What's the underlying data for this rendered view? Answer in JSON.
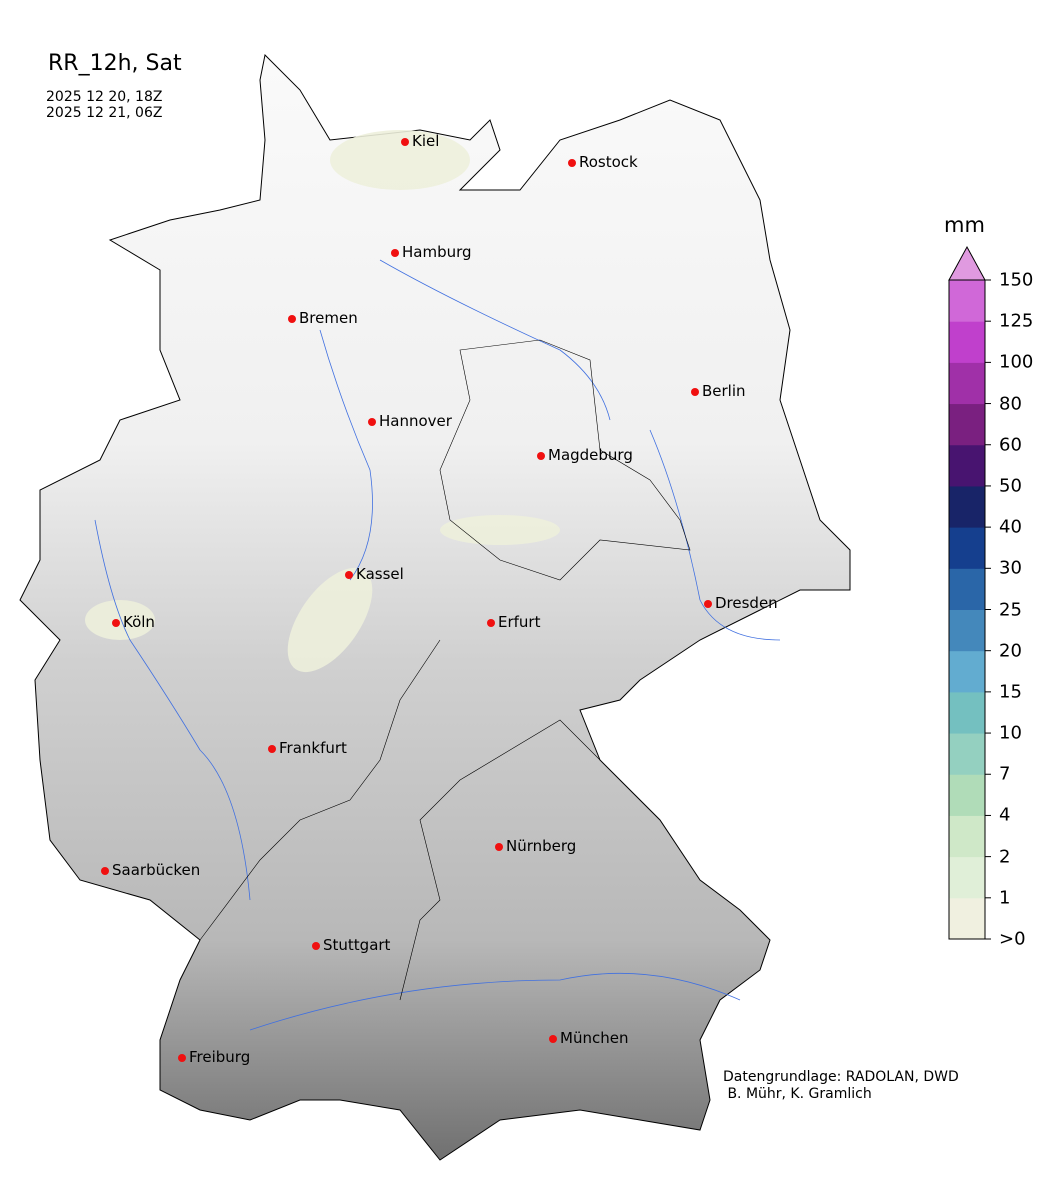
{
  "title": "RR_12h, Sat",
  "period_start": "2025 12 20, 18Z",
  "period_end": "2025 12 21, 06Z",
  "colorbar": {
    "unit": "mm",
    "ticks": [
      ">0",
      "1",
      "2",
      "4",
      "7",
      "10",
      "15",
      "20",
      "25",
      "30",
      "40",
      "50",
      "60",
      "80",
      "100",
      "125",
      "150"
    ],
    "colors": [
      "#f0f0e0",
      "#e0efd8",
      "#cfe8c8",
      "#b0dcb8",
      "#94d0c0",
      "#74c0c0",
      "#62acd0",
      "#4488bb",
      "#2a66a8",
      "#153f8e",
      "#182468",
      "#481470",
      "#7a2080",
      "#a030a8",
      "#c040cc",
      "#d068d8"
    ],
    "extend_color": "#e09ae0"
  },
  "cities": [
    {
      "name": "Kiel"
    },
    {
      "name": "Rostock"
    },
    {
      "name": "Hamburg"
    },
    {
      "name": "Bremen"
    },
    {
      "name": "Berlin"
    },
    {
      "name": "Hannover"
    },
    {
      "name": "Magdeburg"
    },
    {
      "name": "Kassel"
    },
    {
      "name": "Köln"
    },
    {
      "name": "Erfurt"
    },
    {
      "name": "Dresden"
    },
    {
      "name": "Frankfurt"
    },
    {
      "name": "Nürnberg"
    },
    {
      "name": "Saarbücken"
    },
    {
      "name": "Stuttgart"
    },
    {
      "name": "München"
    },
    {
      "name": "Freiburg"
    }
  ],
  "credit_line1": "Datengrundlage: RADOLAN, DWD",
  "credit_line2": " B. Mühr, K. Gramlich",
  "colors": {
    "city_marker": "#f01010",
    "rivers": "#4070e0",
    "terrain_low": "#ffffff",
    "terrain_high": "#505050"
  }
}
